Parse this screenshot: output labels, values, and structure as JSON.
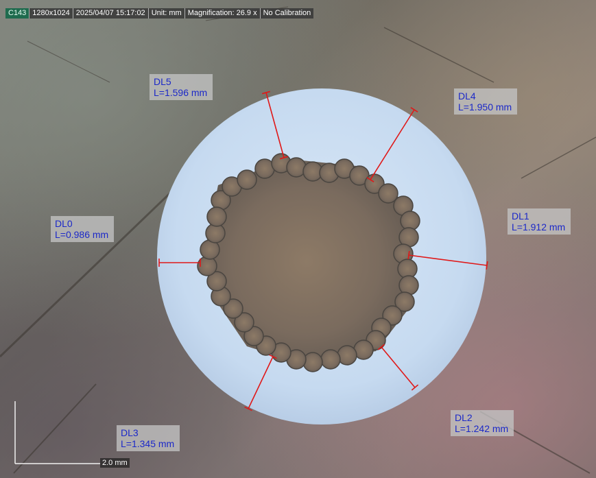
{
  "status_bar": {
    "camera_id": "C143",
    "resolution": "1280x1024",
    "datetime": "2025/04/07 15:17:02",
    "unit": "Unit: mm",
    "magnification": "Magnification:  26.9 x",
    "calibration": "No Calibration"
  },
  "measurements": [
    {
      "name": "DL0",
      "length": "L=0.986 mm"
    },
    {
      "name": "DL1",
      "length": "L=1.912 mm"
    },
    {
      "name": "DL2",
      "length": "L=1.242 mm"
    },
    {
      "name": "DL3",
      "length": "L=1.345 mm"
    },
    {
      "name": "DL4",
      "length": "L=1.950 mm"
    },
    {
      "name": "DL5",
      "length": "L=1.596 mm"
    }
  ],
  "scale_bar": {
    "label": "2.0 mm"
  },
  "colors": {
    "measure_line": "#e01818",
    "label_text": "#1b28c8",
    "disc": "#c9dcf0"
  }
}
